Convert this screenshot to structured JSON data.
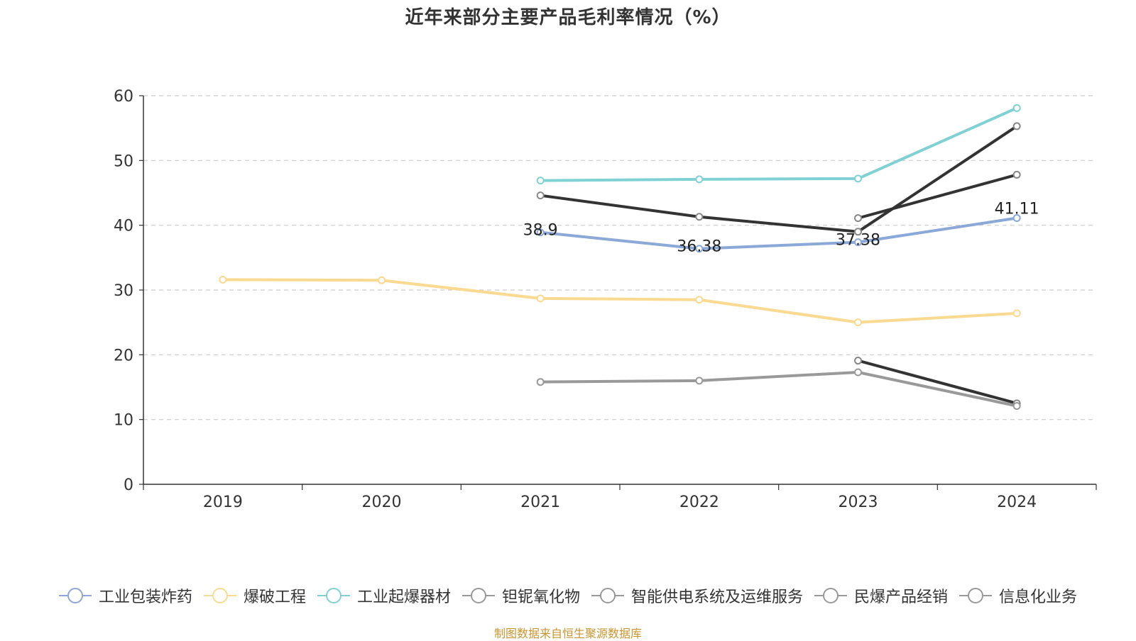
{
  "chart_data": {
    "type": "line",
    "title": "近年来部分主要产品毛利率情况（%）",
    "source_note": "制图数据来自恒生聚源数据库",
    "categories": [
      "2019",
      "2020",
      "2021",
      "2022",
      "2023",
      "2024"
    ],
    "y_ticks": [
      "0",
      "10",
      "20",
      "30",
      "40",
      "50",
      "60"
    ],
    "ylim": [
      0,
      60
    ],
    "grid": "horizontal-dashed",
    "legend_position": "bottom",
    "series": [
      {
        "name": "工业包装炸药",
        "color": "#8aa8d8",
        "values": [
          null,
          null,
          38.9,
          36.38,
          37.38,
          41.11
        ],
        "labels": [
          "",
          "",
          "38.9",
          "36.38",
          "37.38",
          "41.11"
        ]
      },
      {
        "name": "爆破工程",
        "color": "#fad990",
        "values": [
          31.6,
          31.5,
          28.7,
          28.5,
          25.0,
          26.4
        ]
      },
      {
        "name": "工业起爆器材",
        "color": "#7fd1d3",
        "values": [
          null,
          null,
          46.9,
          47.1,
          47.2,
          58.1
        ]
      },
      {
        "name": "钽铌氧化物",
        "color": "#333333",
        "values": [
          null,
          null,
          44.6,
          41.3,
          39.0,
          55.3
        ]
      },
      {
        "name": "智能供电系统及运维服务",
        "color": "#333333",
        "values": [
          null,
          null,
          null,
          null,
          41.1,
          47.8
        ]
      },
      {
        "name": "民爆产品经销",
        "color": "#333333",
        "values": [
          null,
          null,
          null,
          null,
          19.1,
          12.5
        ]
      },
      {
        "name": "信息化业务",
        "color": "#999999",
        "values": [
          null,
          null,
          15.8,
          16.0,
          17.3,
          12.1
        ]
      }
    ],
    "legend_icon_colors": [
      "#8aa8d8",
      "#fad990",
      "#7fd1d3",
      "#999999",
      "#999999",
      "#999999",
      "#999999"
    ]
  }
}
